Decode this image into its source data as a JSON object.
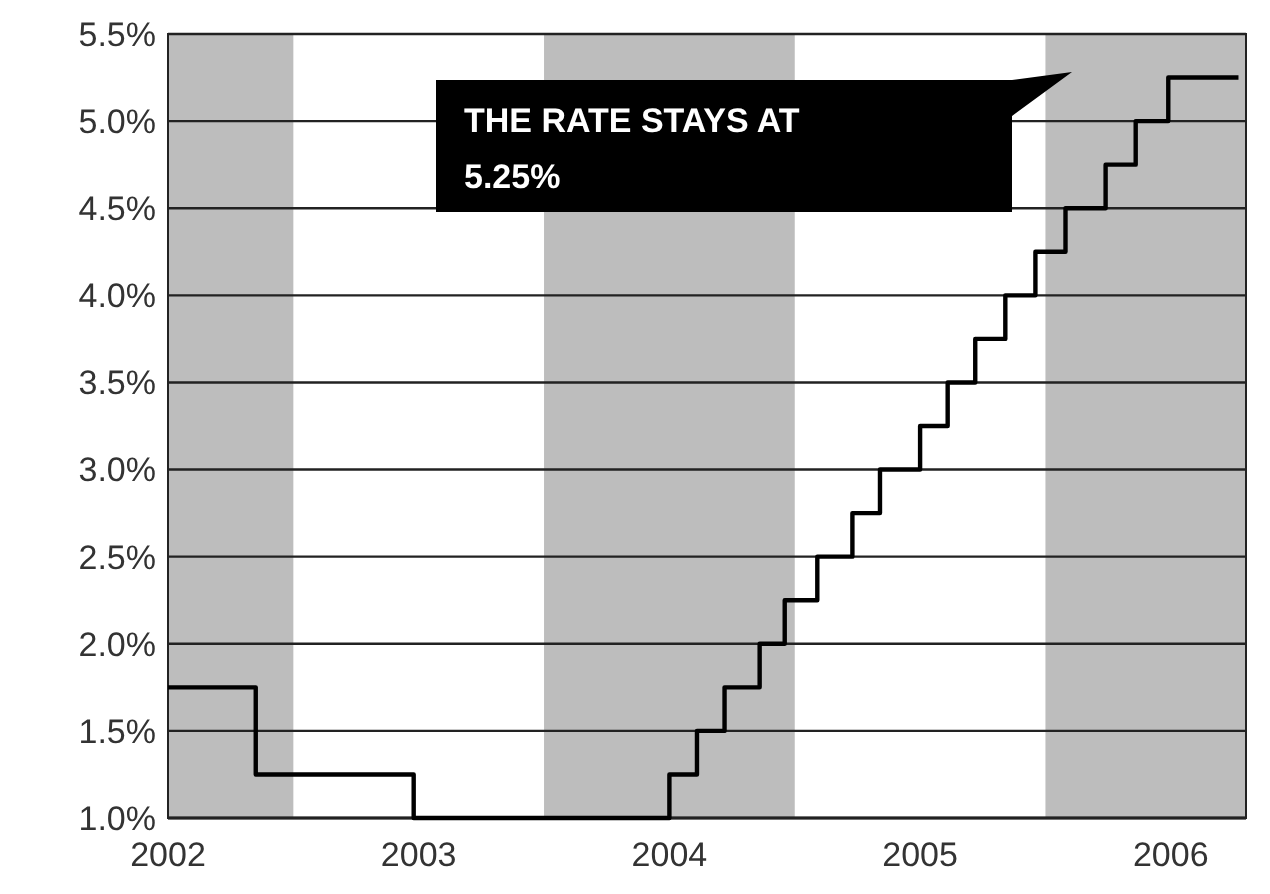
{
  "chart_data": {
    "type": "step",
    "x": [
      2002.5,
      2002.85,
      2003.48,
      2004.5,
      2004.61,
      2004.72,
      2004.86,
      2004.96,
      2005.09,
      2005.23,
      2005.34,
      2005.5,
      2005.61,
      2005.72,
      2005.84,
      2005.96,
      2006.08,
      2006.24,
      2006.36,
      2006.49,
      2006.77
    ],
    "series": [
      {
        "color": "#000000",
        "values": [
          1.75,
          1.25,
          1.0,
          1.25,
          1.5,
          1.75,
          2.0,
          2.25,
          2.5,
          2.75,
          3.0,
          3.25,
          3.5,
          3.75,
          4.0,
          4.25,
          4.5,
          4.75,
          5.0,
          5.25,
          5.25
        ]
      }
    ],
    "xlim": [
      2002.5,
      2006.8
    ],
    "xticks": [
      {
        "value": 2002.5,
        "label": "2002"
      },
      {
        "value": 2003.5,
        "label": "2003"
      },
      {
        "value": 2004.5,
        "label": "2004"
      },
      {
        "value": 2005.5,
        "label": "2005"
      },
      {
        "value": 2006.5,
        "label": "2006"
      }
    ],
    "ylim": [
      1.0,
      5.5
    ],
    "yticks": [
      {
        "value": 1.0,
        "label": "1.0%"
      },
      {
        "value": 1.5,
        "label": "1.5%"
      },
      {
        "value": 2.0,
        "label": "2.0%"
      },
      {
        "value": 2.5,
        "label": "2.5%"
      },
      {
        "value": 3.0,
        "label": "3.0%"
      },
      {
        "value": 3.5,
        "label": "3.5%"
      },
      {
        "value": 4.0,
        "label": "4.0%"
      },
      {
        "value": 4.5,
        "label": "4.5%"
      },
      {
        "value": 5.0,
        "label": "5.0%"
      },
      {
        "value": 5.5,
        "label": "5.5%"
      }
    ],
    "bands": [
      {
        "axis": "x",
        "from": 2002.5,
        "to": 2003.0,
        "color": "#bdbdbd"
      },
      {
        "axis": "x",
        "from": 2004.0,
        "to": 2005.0,
        "color": "#bdbdbd"
      },
      {
        "axis": "x",
        "from": 2006.0,
        "to": 2006.8,
        "color": "#bdbdbd"
      }
    ],
    "grid": "y",
    "annotations": [
      "THE RATE STAYS AT 5.25%"
    ]
  }
}
